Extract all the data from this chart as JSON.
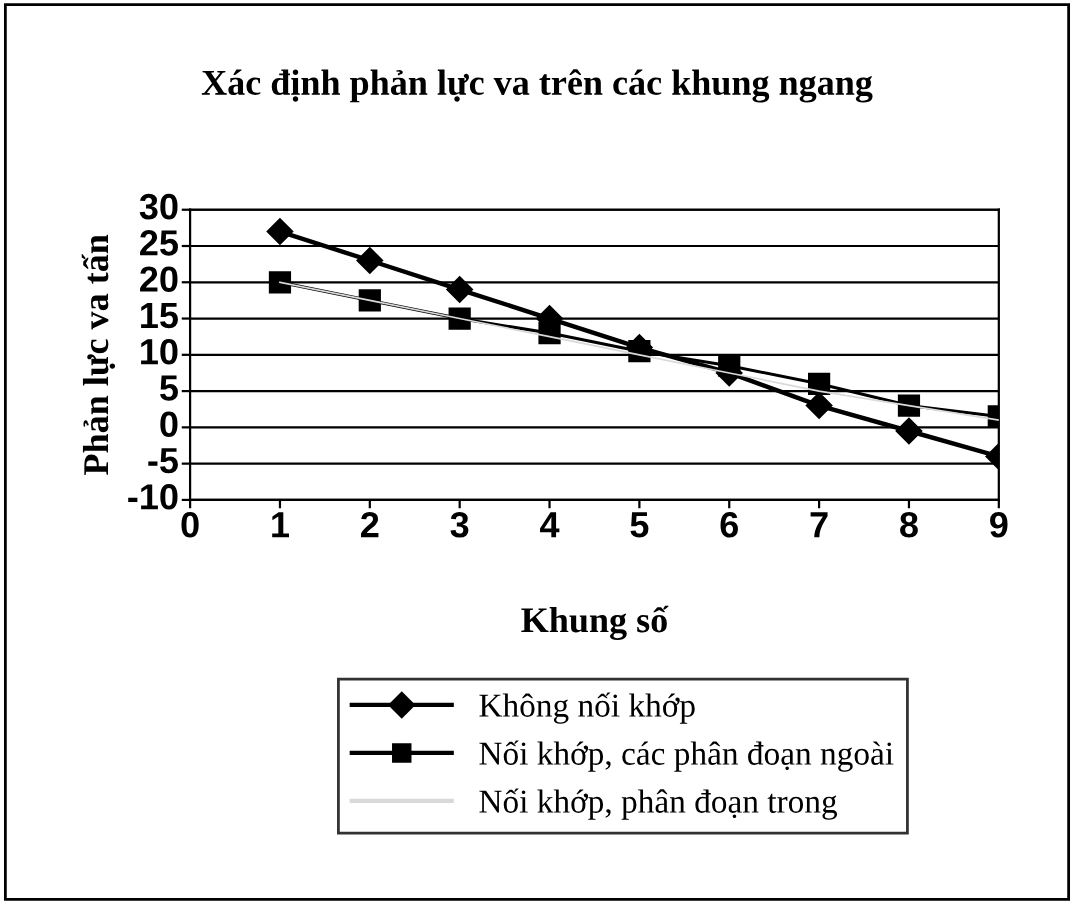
{
  "chart_data": {
    "type": "line",
    "title": "Xác định phản lực va trên các khung ngang",
    "xlabel": "Khung số",
    "ylabel": "Phản lực va tấn",
    "x": [
      1,
      2,
      3,
      4,
      5,
      6,
      7,
      8,
      9
    ],
    "series": [
      {
        "name": "Không nối khớp",
        "color": "#000000",
        "marker": "diamond",
        "values": [
          27,
          23,
          19,
          15,
          11,
          7.5,
          3,
          -0.5,
          -4
        ]
      },
      {
        "name": "Nối khớp, các phân đoạn ngoài",
        "color": "#000000",
        "marker": "square",
        "values": [
          20,
          17.5,
          15,
          13,
          10.5,
          8.5,
          6,
          3,
          1.5
        ]
      },
      {
        "name": "Nối khớp, phân đoạn trong",
        "color": "#d9d9d9",
        "marker": "none",
        "values": [
          20,
          17.5,
          15,
          12.5,
          10,
          7.5,
          5,
          3,
          1
        ]
      }
    ],
    "xlim": [
      0,
      9
    ],
    "xticks": [
      0,
      1,
      2,
      3,
      4,
      5,
      6,
      7,
      8,
      9
    ],
    "ylim": [
      -10,
      30
    ],
    "yticks": [
      -10,
      -5,
      0,
      5,
      10,
      15,
      20,
      25,
      30
    ],
    "grid": "y",
    "legend": "bottom",
    "line_style": "solid"
  }
}
